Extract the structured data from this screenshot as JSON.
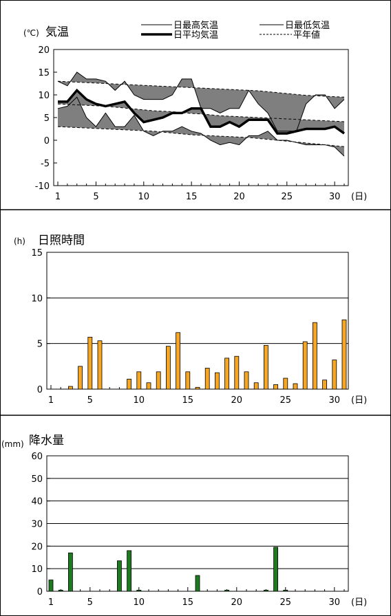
{
  "colors": {
    "frame": "#000000",
    "fill_band": "#7f7f7f",
    "sunshine_bar": "#f5a623",
    "precip_bar": "#1e7a1e",
    "grid": "#000000"
  },
  "chart_data": [
    {
      "type": "line",
      "title": "気温",
      "unit": "(℃)",
      "xlabel": "(日)",
      "xlim": [
        1,
        31
      ],
      "ylim": [
        -10,
        20
      ],
      "xticks": [
        1,
        5,
        10,
        15,
        20,
        25,
        30
      ],
      "yticks": [
        -10,
        -5,
        0,
        5,
        10,
        15,
        20
      ],
      "legend": [
        "日最高気温",
        "日最低気温",
        "日平均気温",
        "平年値"
      ],
      "legend_placement": "top",
      "fill_between_observed_and_normal": true,
      "x": [
        1,
        2,
        3,
        4,
        5,
        6,
        7,
        8,
        9,
        10,
        11,
        12,
        13,
        14,
        15,
        16,
        17,
        18,
        19,
        20,
        21,
        22,
        23,
        24,
        25,
        26,
        27,
        28,
        29,
        30,
        31
      ],
      "series": [
        {
          "name": "日最高気温",
          "style": "thin",
          "values": [
            13,
            12,
            15,
            13.5,
            13.5,
            13,
            11,
            13,
            10,
            9,
            9,
            9,
            10,
            13.5,
            13.5,
            7,
            7,
            6,
            7,
            7,
            11,
            8,
            6,
            2,
            2,
            2,
            8,
            10,
            10,
            7,
            9
          ]
        },
        {
          "name": "日最低気温",
          "style": "thin",
          "values": [
            7,
            7.5,
            9.5,
            5,
            3,
            6,
            3,
            3,
            5.5,
            2,
            1,
            2,
            2,
            3,
            2,
            1.5,
            0,
            -1,
            -0.5,
            -1,
            1,
            1,
            2,
            0,
            0,
            -0.5,
            -1,
            -1,
            -1,
            -1.5,
            -3.5
          ]
        },
        {
          "name": "日平均気温",
          "style": "thick",
          "values": [
            8.5,
            8.5,
            11,
            9,
            8,
            7.5,
            8,
            8.5,
            6,
            4,
            4.5,
            5,
            6,
            6,
            7,
            7,
            3,
            3,
            4,
            3,
            4.5,
            4.5,
            4.5,
            1.5,
            1.5,
            2,
            2.5,
            2.5,
            2.5,
            3,
            1.5
          ]
        },
        {
          "name": "平年値 最高",
          "style": "dash",
          "values": [
            13,
            12.9,
            12.8,
            12.7,
            12.6,
            12.5,
            12.4,
            12.3,
            12.2,
            12.1,
            12,
            11.9,
            11.8,
            11.7,
            11.6,
            11.5,
            11.4,
            11.3,
            11.2,
            11.1,
            11,
            10.9,
            10.7,
            10.5,
            10.3,
            10.1,
            9.9,
            9.8,
            9.7,
            9.6,
            9.5
          ]
        },
        {
          "name": "平年値 平均",
          "style": "dash",
          "values": [
            8,
            7.9,
            7.8,
            7.7,
            7.6,
            7.5,
            7.3,
            7.1,
            6.9,
            6.7,
            6.5,
            6.4,
            6.3,
            6.1,
            5.9,
            5.8,
            5.6,
            5.4,
            5.3,
            5.2,
            5.1,
            5,
            4.9,
            4.8,
            4.7,
            4.6,
            4.5,
            4.4,
            4.3,
            4.2,
            4.1
          ]
        },
        {
          "name": "平年値 最低",
          "style": "dash",
          "values": [
            3,
            2.9,
            2.8,
            2.7,
            2.6,
            2.5,
            2.4,
            2.3,
            2.2,
            2.1,
            2,
            1.8,
            1.6,
            1.4,
            1.2,
            1.1,
            1,
            0.9,
            0.8,
            0.7,
            0.6,
            0.4,
            0.2,
            0,
            -0.2,
            -0.4,
            -0.6,
            -0.8,
            -1,
            -1.2,
            -1.4
          ]
        }
      ]
    },
    {
      "type": "bar",
      "title": "日照時間",
      "unit": "(h)",
      "xlabel": "(日)",
      "xlim": [
        1,
        31
      ],
      "ylim": [
        0,
        15
      ],
      "xticks": [
        1,
        5,
        10,
        15,
        20,
        25,
        30
      ],
      "yticks": [
        0,
        5,
        10,
        15
      ],
      "categories": [
        1,
        2,
        3,
        4,
        5,
        6,
        7,
        8,
        9,
        10,
        11,
        12,
        13,
        14,
        15,
        16,
        17,
        18,
        19,
        20,
        21,
        22,
        23,
        24,
        25,
        26,
        27,
        28,
        29,
        30,
        31
      ],
      "values": [
        0,
        0,
        0.3,
        2.5,
        5.7,
        5.3,
        0,
        0,
        1.1,
        1.9,
        0.7,
        1.9,
        4.7,
        6.2,
        1.9,
        0.2,
        2.3,
        1.8,
        3.4,
        3.6,
        1.9,
        0.7,
        4.8,
        0.5,
        1.2,
        0.6,
        5.2,
        7.3,
        1.0,
        3.2,
        7.6
      ]
    },
    {
      "type": "bar",
      "title": "降水量",
      "unit": "(mm)",
      "xlabel": "(日)",
      "xlim": [
        1,
        31
      ],
      "ylim": [
        0,
        60
      ],
      "xticks": [
        1,
        5,
        10,
        15,
        20,
        25,
        30
      ],
      "yticks": [
        0,
        10,
        20,
        30,
        40,
        50,
        60
      ],
      "categories": [
        1,
        2,
        3,
        4,
        5,
        6,
        7,
        8,
        9,
        10,
        11,
        12,
        13,
        14,
        15,
        16,
        17,
        18,
        19,
        20,
        21,
        22,
        23,
        24,
        25,
        26,
        27,
        28,
        29,
        30,
        31
      ],
      "values": [
        5,
        0.5,
        17,
        0,
        0,
        0,
        0,
        13.5,
        18,
        0.5,
        0,
        0,
        0,
        0,
        0,
        7,
        0,
        0,
        0.5,
        0,
        0,
        0,
        0.5,
        19.5,
        0.5,
        0,
        0,
        0,
        0,
        0,
        0
      ]
    }
  ]
}
